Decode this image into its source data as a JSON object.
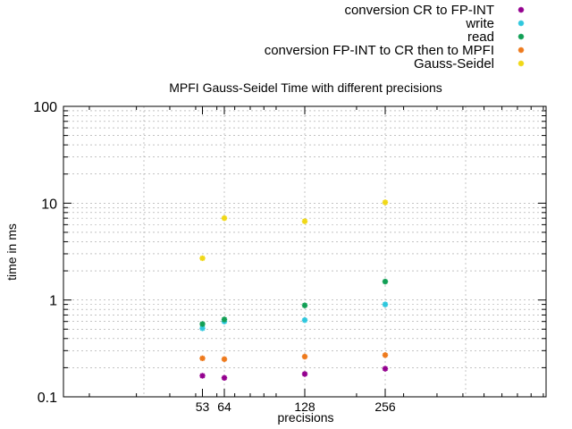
{
  "chart_data": {
    "type": "scatter",
    "title": "MPFI Gauss-Seidel Time with different precisions",
    "xlabel": "precisions",
    "ylabel": "time in ms",
    "x_scale": "log",
    "y_scale": "log",
    "xlim": [
      16,
      1024
    ],
    "ylim": [
      0.1,
      100
    ],
    "grid": true,
    "legend_position": "top-right",
    "x_ticks": [
      {
        "value": 53,
        "label": "53"
      },
      {
        "value": 64,
        "label": "64"
      },
      {
        "value": 128,
        "label": "128"
      },
      {
        "value": 256,
        "label": "256"
      }
    ],
    "y_ticks": [
      {
        "value": 0.1,
        "label": "0.1"
      },
      {
        "value": 1,
        "label": "1"
      },
      {
        "value": 10,
        "label": "10"
      },
      {
        "value": 100,
        "label": "100"
      }
    ],
    "series": [
      {
        "name": "conversion CR to FP-INT",
        "color": "#94008f",
        "points": [
          [
            53,
            0.165
          ],
          [
            64,
            0.157
          ],
          [
            128,
            0.172
          ],
          [
            256,
            0.195
          ]
        ]
      },
      {
        "name": "write",
        "color": "#2fc7dd",
        "points": [
          [
            53,
            0.51
          ],
          [
            64,
            0.6
          ],
          [
            128,
            0.62
          ],
          [
            256,
            0.9
          ]
        ]
      },
      {
        "name": "read",
        "color": "#119f55",
        "points": [
          [
            53,
            0.565
          ],
          [
            64,
            0.63
          ],
          [
            128,
            0.88
          ],
          [
            256,
            1.55
          ]
        ]
      },
      {
        "name": "conversion FP-INT to CR then to MPFI",
        "color": "#ee7a1d",
        "points": [
          [
            53,
            0.25
          ],
          [
            64,
            0.245
          ],
          [
            128,
            0.26
          ],
          [
            256,
            0.27
          ]
        ]
      },
      {
        "name": "Gauss-Seidel",
        "color": "#f0d817",
        "points": [
          [
            53,
            2.7
          ],
          [
            64,
            7.0
          ],
          [
            128,
            6.5
          ],
          [
            256,
            10.2
          ]
        ]
      }
    ]
  }
}
